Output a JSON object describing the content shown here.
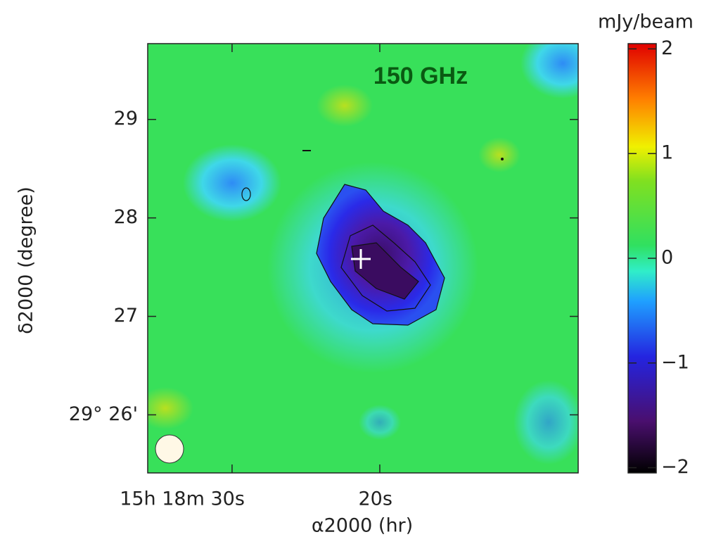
{
  "chart_data": {
    "type": "image",
    "title": "150 GHz",
    "x_label": "α2000 (hr)",
    "y_label": "δ2000 (degree)",
    "xlim": [
      35.71,
      6.57
    ],
    "xticks": [
      {
        "value": 30,
        "label": "15h 18m 30s"
      },
      {
        "value": 20,
        "label": "20s"
      }
    ],
    "ylim": [
      25.41,
      29.77
    ],
    "yticks": [
      {
        "value": 26,
        "label": "29° 26'"
      },
      27,
      28,
      29
    ],
    "colorbar_label": "mJy/beam",
    "clim": [
      -2.05,
      2.05
    ],
    "cticks": [
      {
        "value": -2,
        "label": "−2"
      },
      {
        "value": -1,
        "label": "−1"
      },
      0,
      1,
      2
    ]
  }
}
